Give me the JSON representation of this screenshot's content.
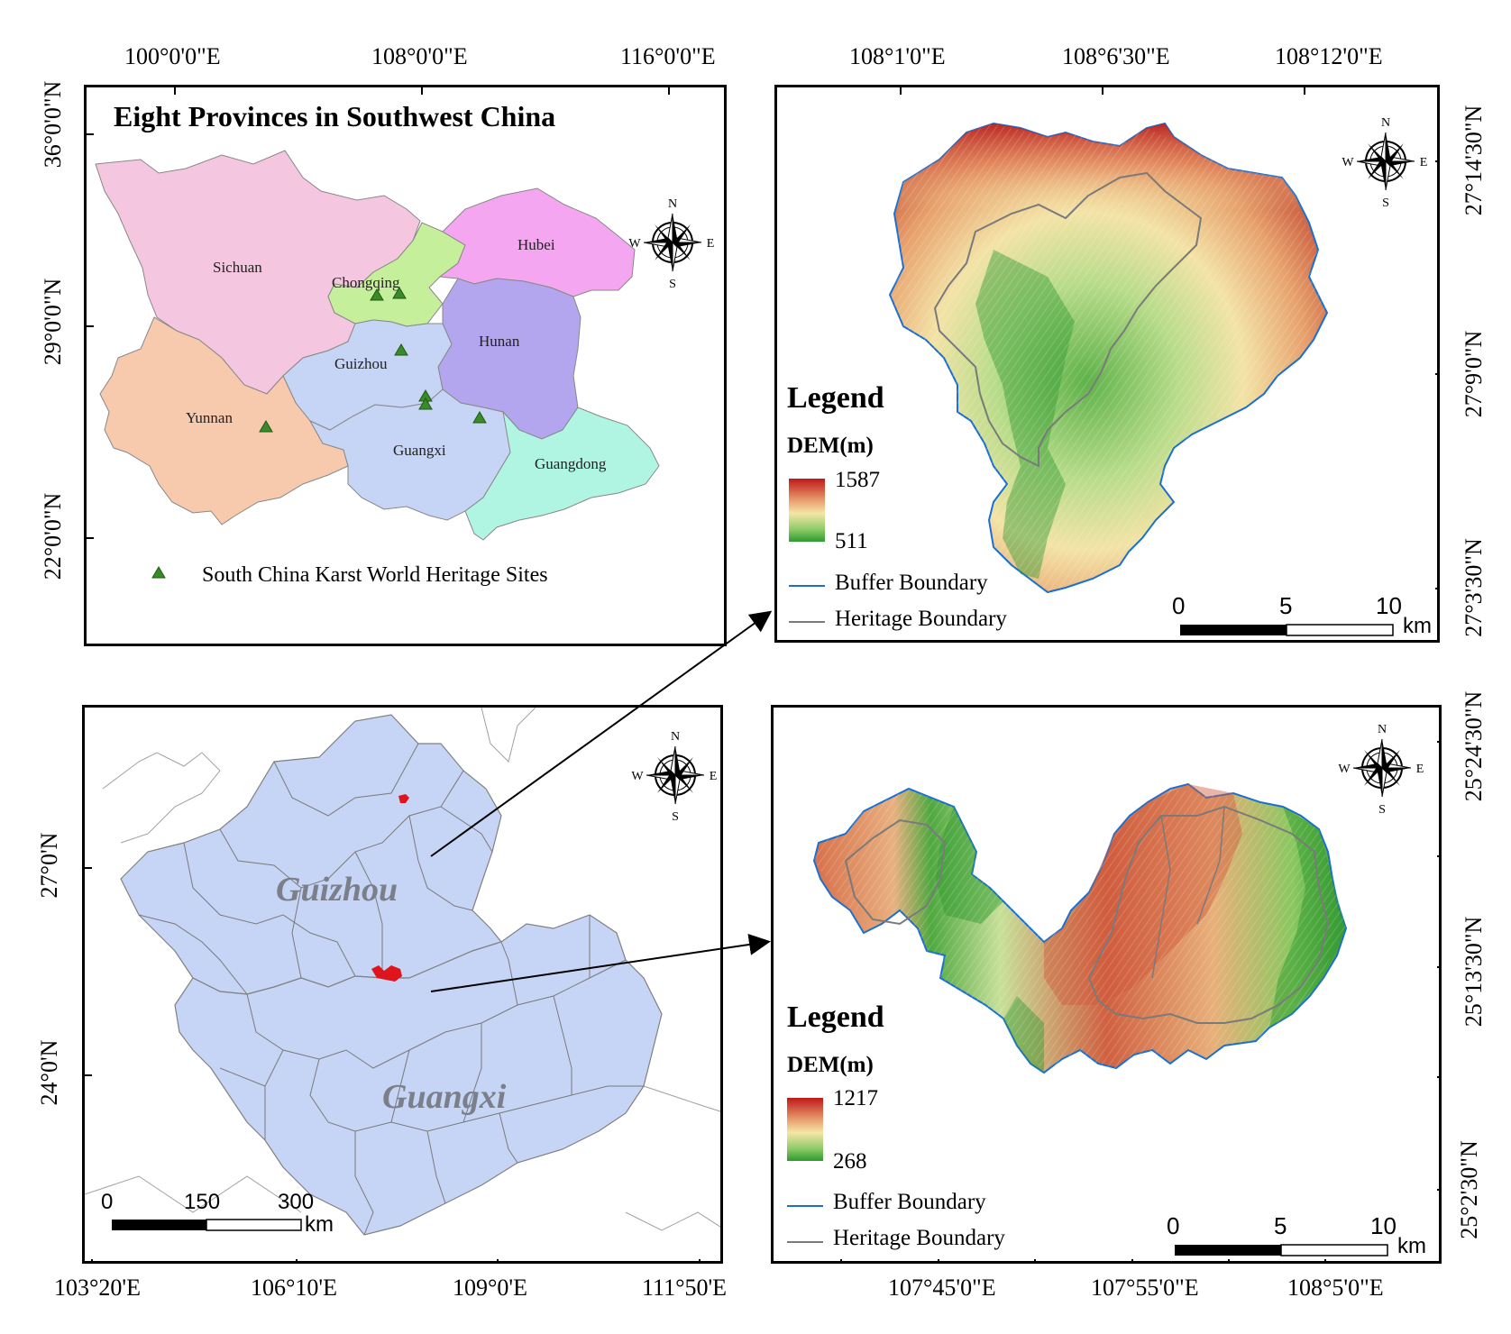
{
  "overview_map": {
    "title": "Eight Provinces in Southwest China",
    "top_ticks": [
      "100°0'0\"E",
      "108°0'0\"E",
      "116°0'0\"E"
    ],
    "left_ticks": [
      "36°0'0\"N",
      "29°0'0\"N",
      "22°0'0\"N"
    ],
    "provinces": [
      {
        "name": "Sichuan",
        "color": "#f5c6df"
      },
      {
        "name": "Chongqing",
        "color": "#c6ef9c"
      },
      {
        "name": "Hubei",
        "color": "#f5a6f0"
      },
      {
        "name": "Hunan",
        "color": "#b3a6ef"
      },
      {
        "name": "Guizhou",
        "color": "#c6d4f5"
      },
      {
        "name": "Yunnan",
        "color": "#f7c9ad"
      },
      {
        "name": "Guangxi",
        "color": "#c6d4f5"
      },
      {
        "name": "Guangdong",
        "color": "#b0f5e2"
      }
    ],
    "legend_label": "South China Karst World Heritage Sites",
    "site_marker_color": "#3a8a2a"
  },
  "regional_map": {
    "region_labels": [
      "Guizhou",
      "Guangxi"
    ],
    "bottom_ticks": [
      "103°20'E",
      "106°10'E",
      "109°0'E",
      "111°50'E"
    ],
    "left_ticks": [
      "27°0'N",
      "24°0'N"
    ],
    "scale_values": [
      "0",
      "150",
      "300"
    ],
    "scale_unit": "km",
    "study_area_color": "#e0141c"
  },
  "dem_north": {
    "top_ticks": [
      "108°1'0\"E",
      "108°6'30\"E",
      "108°12'0\"E"
    ],
    "right_ticks": [
      "27°14'30\"N",
      "27°9'0\"N",
      "27°3'30\"N"
    ],
    "legend_title": "Legend",
    "dem_label": "DEM(m)",
    "dem_high": "1587",
    "dem_low": "511",
    "buffer_label": "Buffer Boundary",
    "heritage_label": "Heritage Boundary",
    "scale_values": [
      "0",
      "5",
      "10"
    ],
    "scale_unit": "km"
  },
  "dem_south": {
    "bottom_ticks": [
      "107°45'0\"E",
      "107°55'0\"E",
      "108°5'0\"E"
    ],
    "right_ticks": [
      "25°24'30\"N",
      "25°13'30\"N",
      "25°2'30\"N"
    ],
    "legend_title": "Legend",
    "dem_label": "DEM(m)",
    "dem_high": "1217",
    "dem_low": "268",
    "buffer_label": "Buffer Boundary",
    "heritage_label": "Heritage Boundary",
    "scale_values": [
      "0",
      "5",
      "10"
    ],
    "scale_unit": "km"
  },
  "compass": {
    "n": "N",
    "s": "S",
    "e": "E",
    "w": "W"
  },
  "colors": {
    "dem_high": "#c01818",
    "dem_mid": "#f5e6a6",
    "dem_low": "#2e9a2e",
    "buffer_boundary": "#1a6fd0",
    "heritage_boundary": "#7a7a7a"
  }
}
